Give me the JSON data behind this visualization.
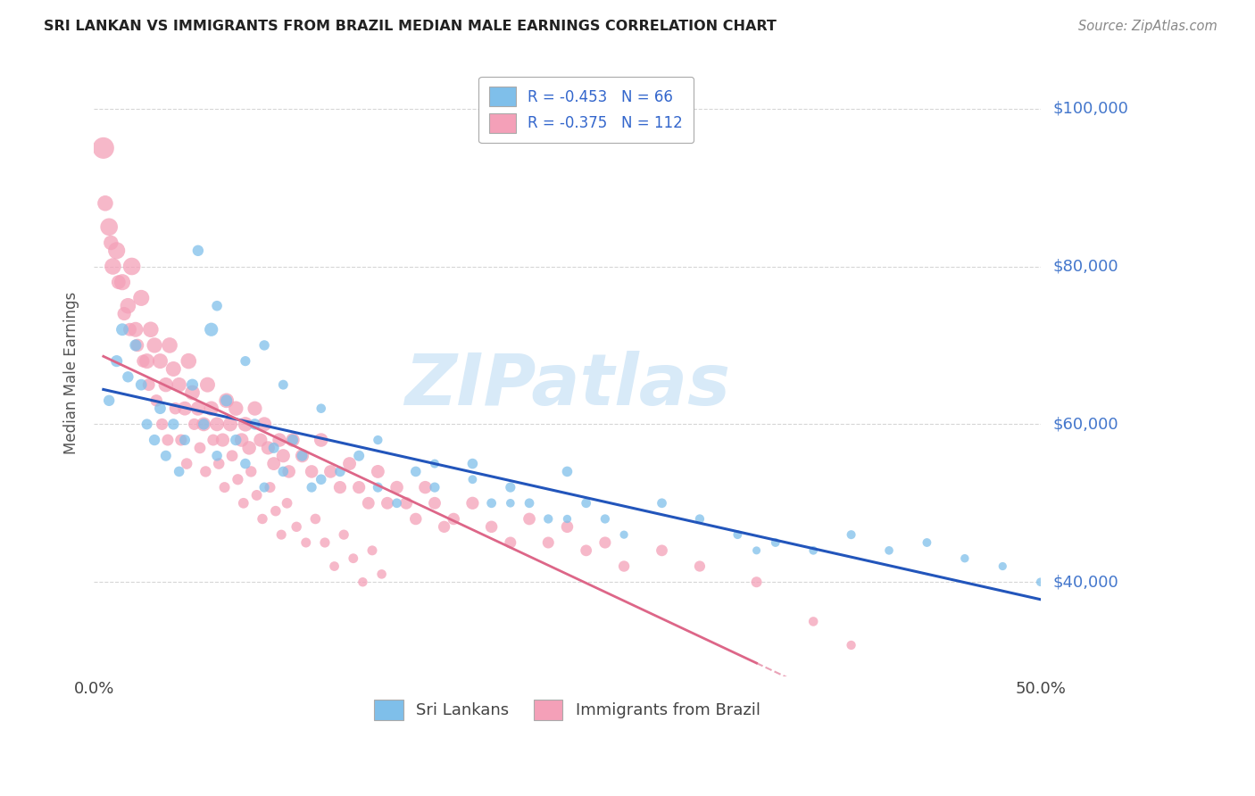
{
  "title": "SRI LANKAN VS IMMIGRANTS FROM BRAZIL MEDIAN MALE EARNINGS CORRELATION CHART",
  "source": "Source: ZipAtlas.com",
  "ylabel": "Median Male Earnings",
  "xlim": [
    0.0,
    0.5
  ],
  "ylim": [
    28000,
    105000
  ],
  "ytick_positions": [
    40000,
    60000,
    80000,
    100000
  ],
  "ytick_labels": [
    "$40,000",
    "$60,000",
    "$80,000",
    "$100,000"
  ],
  "sri_lanka_color": "#7fbfea",
  "brazil_color": "#f4a0b8",
  "trend_blue": "#2255bb",
  "trend_pink": "#dd6688",
  "watermark": "ZIPatlas",
  "watermark_color": "#d8eaf8",
  "background_color": "#ffffff",
  "grid_color": "#cccccc",
  "axis_label_color": "#4477cc",
  "title_color": "#222222",
  "legend_label_color": "#3366cc",
  "sri_lankans_x": [
    0.008,
    0.012,
    0.015,
    0.018,
    0.022,
    0.025,
    0.028,
    0.032,
    0.035,
    0.038,
    0.042,
    0.045,
    0.048,
    0.052,
    0.058,
    0.062,
    0.065,
    0.07,
    0.075,
    0.08,
    0.085,
    0.09,
    0.095,
    0.1,
    0.105,
    0.11,
    0.115,
    0.12,
    0.13,
    0.14,
    0.15,
    0.16,
    0.17,
    0.18,
    0.2,
    0.21,
    0.22,
    0.23,
    0.24,
    0.25,
    0.26,
    0.27,
    0.3,
    0.32,
    0.34,
    0.36,
    0.38,
    0.4,
    0.42,
    0.44,
    0.46,
    0.48,
    0.5,
    0.055,
    0.065,
    0.08,
    0.09,
    0.1,
    0.12,
    0.15,
    0.18,
    0.2,
    0.22,
    0.25,
    0.28,
    0.35
  ],
  "sri_lankans_y": [
    63000,
    68000,
    72000,
    66000,
    70000,
    65000,
    60000,
    58000,
    62000,
    56000,
    60000,
    54000,
    58000,
    65000,
    60000,
    72000,
    56000,
    63000,
    58000,
    55000,
    60000,
    52000,
    57000,
    54000,
    58000,
    56000,
    52000,
    53000,
    54000,
    56000,
    52000,
    50000,
    54000,
    52000,
    55000,
    50000,
    52000,
    50000,
    48000,
    54000,
    50000,
    48000,
    50000,
    48000,
    46000,
    45000,
    44000,
    46000,
    44000,
    45000,
    43000,
    42000,
    40000,
    82000,
    75000,
    68000,
    70000,
    65000,
    62000,
    58000,
    55000,
    53000,
    50000,
    48000,
    46000,
    44000
  ],
  "sri_lankans_s": [
    80,
    90,
    100,
    80,
    90,
    85,
    75,
    80,
    85,
    75,
    80,
    70,
    75,
    90,
    80,
    120,
    70,
    90,
    80,
    70,
    80,
    65,
    75,
    70,
    80,
    75,
    65,
    70,
    70,
    75,
    65,
    60,
    70,
    65,
    70,
    60,
    65,
    60,
    55,
    70,
    60,
    55,
    60,
    55,
    50,
    50,
    48,
    52,
    48,
    50,
    46,
    44,
    48,
    80,
    70,
    65,
    68,
    62,
    58,
    55,
    52,
    50,
    48,
    45,
    44,
    42
  ],
  "brazil_x": [
    0.005,
    0.008,
    0.01,
    0.012,
    0.015,
    0.018,
    0.02,
    0.022,
    0.025,
    0.028,
    0.03,
    0.032,
    0.035,
    0.038,
    0.04,
    0.042,
    0.045,
    0.048,
    0.05,
    0.052,
    0.055,
    0.058,
    0.06,
    0.062,
    0.065,
    0.068,
    0.07,
    0.072,
    0.075,
    0.078,
    0.08,
    0.082,
    0.085,
    0.088,
    0.09,
    0.092,
    0.095,
    0.098,
    0.1,
    0.103,
    0.105,
    0.11,
    0.115,
    0.12,
    0.125,
    0.13,
    0.135,
    0.14,
    0.145,
    0.15,
    0.155,
    0.16,
    0.165,
    0.17,
    0.175,
    0.18,
    0.185,
    0.19,
    0.2,
    0.21,
    0.22,
    0.23,
    0.24,
    0.25,
    0.26,
    0.27,
    0.28,
    0.3,
    0.32,
    0.35,
    0.006,
    0.009,
    0.013,
    0.016,
    0.019,
    0.023,
    0.026,
    0.029,
    0.033,
    0.036,
    0.039,
    0.043,
    0.046,
    0.049,
    0.053,
    0.056,
    0.059,
    0.063,
    0.066,
    0.069,
    0.073,
    0.076,
    0.079,
    0.083,
    0.086,
    0.089,
    0.093,
    0.096,
    0.099,
    0.102,
    0.107,
    0.112,
    0.117,
    0.122,
    0.127,
    0.132,
    0.137,
    0.142,
    0.147,
    0.152,
    0.4,
    0.38
  ],
  "brazil_y": [
    95000,
    85000,
    80000,
    82000,
    78000,
    75000,
    80000,
    72000,
    76000,
    68000,
    72000,
    70000,
    68000,
    65000,
    70000,
    67000,
    65000,
    62000,
    68000,
    64000,
    62000,
    60000,
    65000,
    62000,
    60000,
    58000,
    63000,
    60000,
    62000,
    58000,
    60000,
    57000,
    62000,
    58000,
    60000,
    57000,
    55000,
    58000,
    56000,
    54000,
    58000,
    56000,
    54000,
    58000,
    54000,
    52000,
    55000,
    52000,
    50000,
    54000,
    50000,
    52000,
    50000,
    48000,
    52000,
    50000,
    47000,
    48000,
    50000,
    47000,
    45000,
    48000,
    45000,
    47000,
    44000,
    45000,
    42000,
    44000,
    42000,
    40000,
    88000,
    83000,
    78000,
    74000,
    72000,
    70000,
    68000,
    65000,
    63000,
    60000,
    58000,
    62000,
    58000,
    55000,
    60000,
    57000,
    54000,
    58000,
    55000,
    52000,
    56000,
    53000,
    50000,
    54000,
    51000,
    48000,
    52000,
    49000,
    46000,
    50000,
    47000,
    45000,
    48000,
    45000,
    42000,
    46000,
    43000,
    40000,
    44000,
    41000,
    32000,
    35000
  ],
  "brazil_s": [
    300,
    200,
    180,
    190,
    170,
    160,
    200,
    150,
    170,
    150,
    160,
    155,
    150,
    140,
    160,
    150,
    140,
    130,
    160,
    145,
    135,
    130,
    150,
    140,
    130,
    120,
    145,
    135,
    140,
    125,
    140,
    125,
    135,
    120,
    135,
    120,
    115,
    125,
    120,
    110,
    125,
    120,
    110,
    125,
    110,
    105,
    115,
    105,
    100,
    115,
    100,
    110,
    100,
    95,
    108,
    100,
    92,
    95,
    105,
    95,
    88,
    98,
    88,
    95,
    85,
    90,
    80,
    85,
    78,
    75,
    160,
    140,
    130,
    120,
    115,
    110,
    105,
    100,
    95,
    90,
    88,
    95,
    88,
    82,
    90,
    85,
    80,
    88,
    82,
    75,
    85,
    78,
    72,
    80,
    74,
    68,
    76,
    70,
    64,
    72,
    68,
    63,
    70,
    65,
    60,
    66,
    61,
    57,
    63,
    58,
    55,
    58
  ]
}
